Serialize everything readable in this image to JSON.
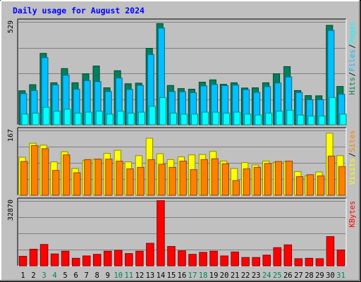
{
  "title": "Daily usage for August 2024",
  "colors": {
    "background": "#c0c0c0",
    "plot_bg": "#c0c0c0",
    "title": "#0000ff",
    "hits": "#00805c",
    "files": "#00c0ff",
    "pages": "#00ffff",
    "visits": "#ffff00",
    "sites": "#ff8000",
    "kbytes": "#ff0000",
    "day_weekend": "#00805c",
    "day_weekday": "#000000"
  },
  "chart_data": [
    {
      "type": "bar",
      "panel": "hits-files-pages",
      "ymax_label": "529",
      "ylim": [
        0,
        529
      ],
      "legend": [
        {
          "name": "Pages",
          "color": "#00ffff"
        },
        {
          "name": "Files",
          "color": "#00c0ff"
        },
        {
          "name": "Hits",
          "color": "#00805c"
        }
      ],
      "categories": [
        "1",
        "2",
        "3",
        "4",
        "5",
        "6",
        "7",
        "8",
        "9",
        "10",
        "11",
        "12",
        "13",
        "14",
        "15",
        "16",
        "17",
        "18",
        "19",
        "20",
        "21",
        "22",
        "23",
        "24",
        "25",
        "26",
        "27",
        "28",
        "29",
        "30",
        "31"
      ],
      "series": [
        {
          "name": "Hits",
          "values": [
            175,
            206,
            367,
            216,
            289,
            216,
            262,
            302,
            190,
            278,
            211,
            214,
            393,
            520,
            202,
            186,
            183,
            219,
            231,
            208,
            216,
            189,
            190,
            216,
            262,
            299,
            176,
            150,
            149,
            511,
            197
          ]
        },
        {
          "name": "Files",
          "values": [
            160,
            176,
            345,
            205,
            255,
            183,
            227,
            222,
            171,
            240,
            182,
            203,
            361,
            497,
            171,
            170,
            165,
            200,
            207,
            201,
            204,
            181,
            167,
            196,
            215,
            246,
            166,
            129,
            129,
            485,
            157
          ]
        },
        {
          "name": "Pages",
          "values": [
            55,
            60,
            90,
            70,
            80,
            60,
            65,
            70,
            55,
            70,
            60,
            65,
            95,
            140,
            60,
            55,
            55,
            65,
            65,
            60,
            65,
            55,
            50,
            60,
            70,
            75,
            50,
            45,
            45,
            140,
            55
          ]
        }
      ]
    },
    {
      "type": "bar",
      "panel": "visits-sites",
      "ymax_label": "167",
      "ylim": [
        0,
        167
      ],
      "legend": [
        {
          "name": "Sites",
          "color": "#ff8000"
        },
        {
          "name": "Visits",
          "color": "#ffff00"
        }
      ],
      "categories": [
        "1",
        "2",
        "3",
        "4",
        "5",
        "6",
        "7",
        "8",
        "9",
        "10",
        "11",
        "12",
        "13",
        "14",
        "15",
        "16",
        "17",
        "18",
        "19",
        "20",
        "21",
        "22",
        "23",
        "24",
        "25",
        "26",
        "27",
        "28",
        "29",
        "30",
        "31"
      ],
      "series": [
        {
          "name": "Visits",
          "values": [
            98,
            134,
            129,
            86,
            112,
            69,
            89,
            93,
            108,
            116,
            86,
            102,
            147,
            107,
            92,
            99,
            104,
            105,
            113,
            88,
            69,
            84,
            78,
            88,
            85,
            87,
            61,
            50,
            60,
            160,
            102
          ]
        },
        {
          "name": "Sites",
          "values": [
            87,
            128,
            120,
            64,
            104,
            58,
            92,
            93,
            93,
            88,
            68,
            72,
            92,
            80,
            72,
            88,
            66,
            92,
            94,
            81,
            38,
            68,
            72,
            82,
            87,
            88,
            48,
            53,
            50,
            101,
            74
          ]
        }
      ]
    },
    {
      "type": "bar",
      "panel": "kbytes",
      "ymax_label": "32870",
      "ylim": [
        0,
        32870
      ],
      "legend": [
        {
          "name": "KBytes",
          "color": "#ff0000"
        }
      ],
      "categories": [
        "1",
        "2",
        "3",
        "4",
        "5",
        "6",
        "7",
        "8",
        "9",
        "10",
        "11",
        "12",
        "13",
        "14",
        "15",
        "16",
        "17",
        "18",
        "19",
        "20",
        "21",
        "22",
        "23",
        "24",
        "25",
        "26",
        "27",
        "28",
        "29",
        "30",
        "31"
      ],
      "series": [
        {
          "name": "KBytes",
          "values": [
            4800,
            8400,
            10800,
            6000,
            7400,
            3800,
            5000,
            5800,
            7400,
            7800,
            6200,
            7400,
            11400,
            33000,
            9800,
            7600,
            5800,
            6800,
            7400,
            5000,
            7000,
            4200,
            4200,
            5400,
            9200,
            10600,
            3600,
            3800,
            3600,
            14800,
            8000
          ]
        }
      ]
    }
  ],
  "weekend_days": [
    "3",
    "4",
    "10",
    "11",
    "17",
    "18",
    "24",
    "25",
    "31"
  ]
}
